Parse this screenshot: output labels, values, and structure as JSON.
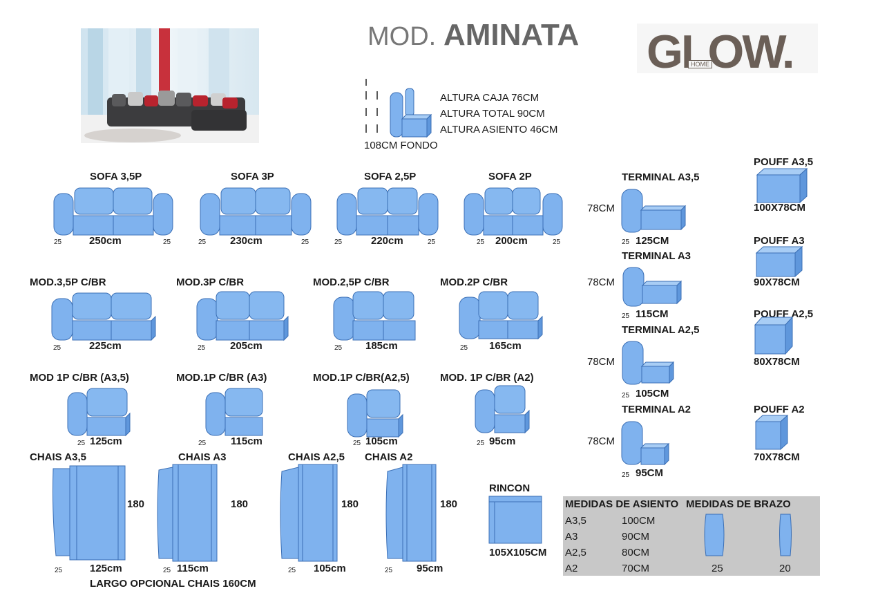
{
  "header": {
    "title_prefix": "MOD.",
    "title_name": "AMINATA",
    "logo_text": "GLOW.",
    "logo_sub": "HOME"
  },
  "dimensions_info": {
    "box_height": "ALTURA CAJA 76CM",
    "total_height": "ALTURA TOTAL 90CM",
    "seat_height": "ALTURA ASIENTO  46CM",
    "depth": "108CM FONDO"
  },
  "sofas": [
    {
      "label": "SOFA 3,5P",
      "width": "250cm",
      "arm_l": "25",
      "arm_r": "25"
    },
    {
      "label": "SOFA 3P",
      "width": "230cm",
      "arm_l": "25",
      "arm_r": "25"
    },
    {
      "label": "SOFA 2,5P",
      "width": "220cm",
      "arm_l": "25",
      "arm_r": "25"
    },
    {
      "label": "SOFA 2P",
      "width": "200cm",
      "arm_l": "25",
      "arm_r": "25"
    }
  ],
  "modules_br": [
    {
      "label": "MOD.3,5P C/BR",
      "width": "225cm",
      "arm": "25"
    },
    {
      "label": "MOD.3P C/BR",
      "width": "205cm",
      "arm": "25"
    },
    {
      "label": "MOD.2,5P C/BR",
      "width": "185cm",
      "arm": "25"
    },
    {
      "label": "MOD.2P C/BR",
      "width": "165cm",
      "arm": "25"
    }
  ],
  "modules_1p": [
    {
      "label": "MOD 1P C/BR (A3,5)",
      "width": "125cm",
      "arm": "25"
    },
    {
      "label": "MOD.1P C/BR (A3)",
      "width": "115cm",
      "arm": "25"
    },
    {
      "label": "MOD.1P C/BR(A2,5)",
      "width": "105cm",
      "arm": "25"
    },
    {
      "label": "MOD. 1P C/BR (A2)",
      "width": "95cm",
      "arm": "25"
    }
  ],
  "chaises": [
    {
      "label": "CHAIS A3,5",
      "width": "125cm",
      "length": "180",
      "arm": "25"
    },
    {
      "label": "CHAIS A3",
      "width": "115cm",
      "length": "180",
      "arm": "25"
    },
    {
      "label": "CHAIS A2,5",
      "width": "105cm",
      "length": "180",
      "arm": "25"
    },
    {
      "label": "CHAIS A2",
      "width": "95cm",
      "length": "180",
      "arm": "25"
    }
  ],
  "chaise_note": "LARGO OPCIONAL CHAIS 160CM",
  "rincon": {
    "label": "RINCON",
    "size": "105X105CM"
  },
  "terminals": [
    {
      "label": "TERMINAL A3,5",
      "depth": "78CM",
      "width": "125CM",
      "arm": "25"
    },
    {
      "label": "TERMINAL A3",
      "depth": "78CM",
      "width": "115CM",
      "arm": "25"
    },
    {
      "label": "TERMINAL A2,5",
      "depth": "78CM",
      "width": "105CM",
      "arm": "25"
    },
    {
      "label": "TERMINAL A2",
      "depth": "78CM",
      "width": "95CM",
      "arm": "25"
    }
  ],
  "poufs": [
    {
      "label": "POUFF A3,5",
      "size": "100X78CM"
    },
    {
      "label": "POUFF A3",
      "size": "90X78CM"
    },
    {
      "label": "POUFF A2,5",
      "size": "80X78CM"
    },
    {
      "label": "POUFF A2",
      "size": "70X78CM"
    }
  ],
  "measures_table": {
    "header_seat": "MEDIDAS DE ASIENTO",
    "header_arm": "MEDIDAS DE BRAZO",
    "rows": [
      {
        "code": "A3,5",
        "value": "100CM"
      },
      {
        "code": "A3",
        "value": "90CM"
      },
      {
        "code": "A2,5",
        "value": "80CM"
      },
      {
        "code": "A2",
        "value": "70CM"
      }
    ],
    "arm_wide": "25",
    "arm_narrow": "20"
  },
  "colors": {
    "fill": "#7fb2ee",
    "fill_light": "#a8cdf5",
    "stroke": "#3b6fb5",
    "table_bg": "#c8c8c8"
  }
}
